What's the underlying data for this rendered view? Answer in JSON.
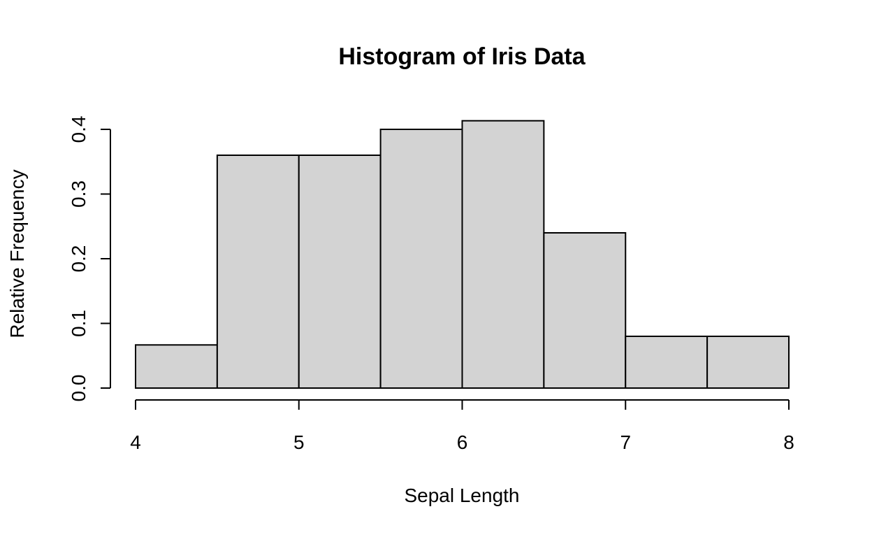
{
  "chart_data": {
    "type": "bar",
    "title": "Histogram of Iris Data",
    "xlabel": "Sepal Length",
    "ylabel": "Relative Frequency",
    "bin_edges": [
      4,
      4.5,
      5,
      5.5,
      6,
      6.5,
      7,
      7.5,
      8
    ],
    "values": [
      0.0667,
      0.36,
      0.36,
      0.4,
      0.4133,
      0.24,
      0.08,
      0.08
    ],
    "xlim": [
      4,
      8
    ],
    "ylim": [
      0,
      0.4
    ],
    "x_ticks": [
      "4",
      "5",
      "6",
      "7",
      "8"
    ],
    "y_ticks": [
      "0.0",
      "0.1",
      "0.2",
      "0.3",
      "0.4"
    ],
    "grid": false,
    "bar_color": "#d3d3d3",
    "border_color": "#000000"
  }
}
